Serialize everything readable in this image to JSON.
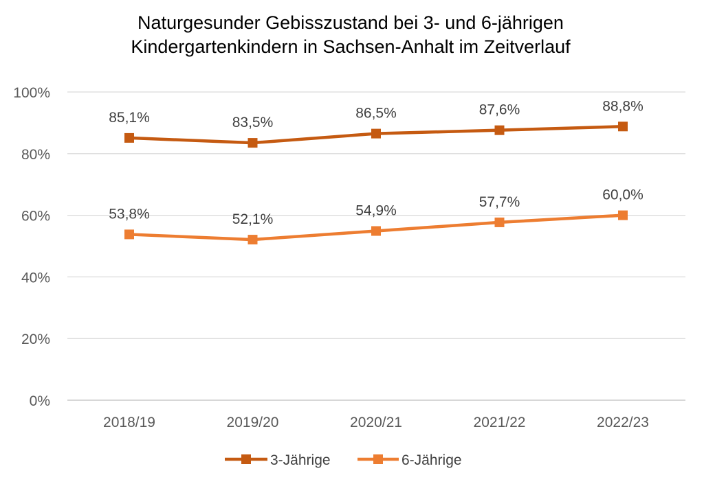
{
  "chart_data": {
    "type": "line",
    "title": [
      "Naturgesunder Gebisszustand bei 3- und 6-jährigen",
      "Kindergartenkindern in Sachsen-Anhalt im Zeitverlauf"
    ],
    "categories": [
      "2018/19",
      "2019/20",
      "2020/21",
      "2021/22",
      "2022/23"
    ],
    "series": [
      {
        "name": "3-Jährige",
        "color": "#C55A11",
        "values": [
          85.1,
          83.5,
          86.5,
          87.6,
          88.8
        ],
        "labels": [
          "85,1%",
          "83,5%",
          "86,5%",
          "87,6%",
          "88,8%"
        ]
      },
      {
        "name": "6-Jährige",
        "color": "#ED7D31",
        "values": [
          53.8,
          52.1,
          54.9,
          57.7,
          60.0
        ],
        "labels": [
          "53,8%",
          "52,1%",
          "54,9%",
          "57,7%",
          "60,0%"
        ]
      }
    ],
    "ylim": [
      0,
      100
    ],
    "yticks": [
      0,
      20,
      40,
      60,
      80,
      100
    ],
    "ytick_labels": [
      "0%",
      "20%",
      "40%",
      "60%",
      "80%",
      "100%"
    ],
    "xlabel": "",
    "ylabel": "",
    "grid": true,
    "legend": "bottom"
  }
}
